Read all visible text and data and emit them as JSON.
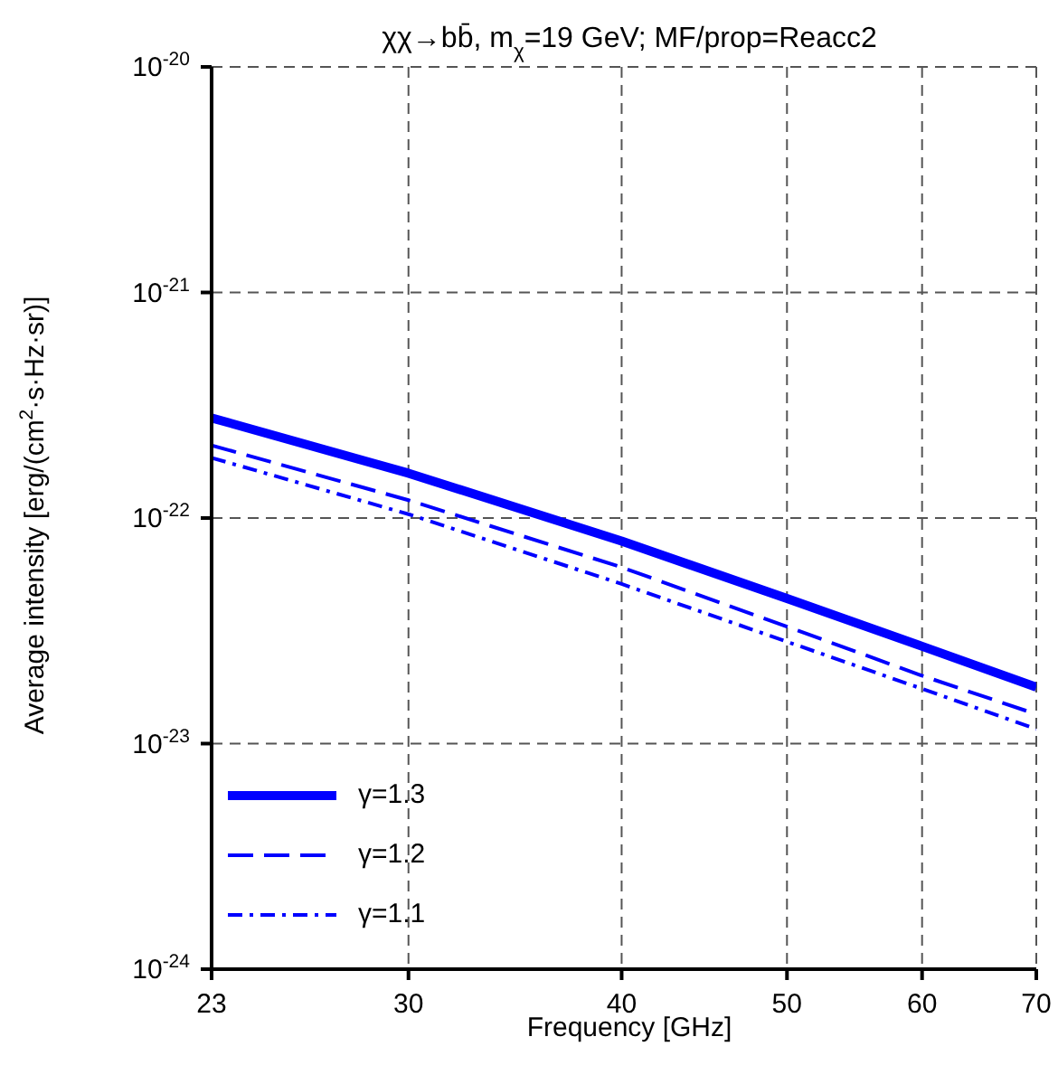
{
  "chart_data": {
    "type": "line",
    "title": "χχ→bb̄, m$_{χ}$=19 GeV; MF/prop=Reacc2",
    "xlabel": "Frequency [GHz]",
    "ylabel": "Average intensity [erg/(cm$^{2}$·s·Hz·sr)]",
    "x": [
      23,
      30,
      40,
      50,
      60,
      70
    ],
    "series": [
      {
        "name": "γ=1.3",
        "color": "#0000ff",
        "line_style": "solid",
        "values": [
          2.78e-22,
          1.58e-22,
          7.9e-23,
          4.4e-23,
          2.7e-23,
          1.78e-23
        ]
      },
      {
        "name": "γ=1.2",
        "color": "#0000ff",
        "line_style": "dashed",
        "values": [
          2.1e-22,
          1.2e-22,
          6.05e-23,
          3.3e-23,
          2e-23,
          1.35e-23
        ]
      },
      {
        "name": "γ=1.1",
        "color": "#0000ff",
        "line_style": "dashdot",
        "values": [
          1.85e-22,
          1.04e-22,
          5.1e-23,
          2.83e-23,
          1.75e-23,
          1.16e-23
        ]
      }
    ],
    "log": "xy",
    "xlim": [
      23,
      70
    ],
    "xticks": [
      23,
      30,
      40,
      50,
      60,
      70
    ],
    "ylim": [
      1e-24,
      1e-20
    ],
    "yticks": [
      {
        "value": 1e-24,
        "label": "10$^{-24}$"
      },
      {
        "value": 1e-23,
        "label": "10$^{-23}$"
      },
      {
        "value": 1e-22,
        "label": "10$^{-22}$"
      },
      {
        "value": 1e-21,
        "label": "10$^{-21}$"
      },
      {
        "value": 1e-20,
        "label": "10$^{-20}$"
      }
    ],
    "grid": true,
    "legend": "bottom left",
    "marker": "none"
  }
}
